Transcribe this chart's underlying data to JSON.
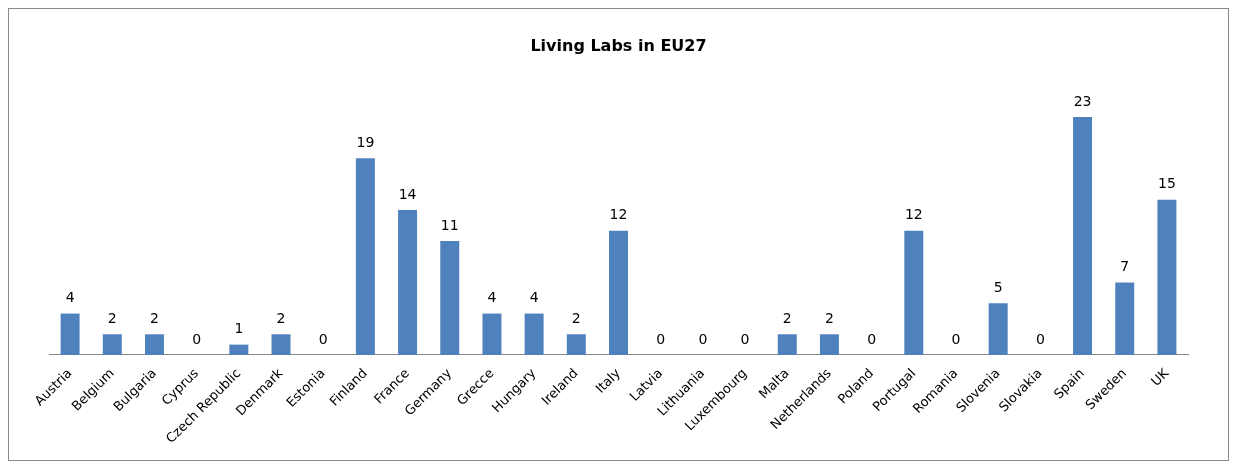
{
  "chart_data": {
    "type": "bar",
    "title": "Living Labs in EU27",
    "categories": [
      "Austria",
      "Belgium",
      "Bulgaria",
      "Cyprus",
      "Czech Republic",
      "Denmark",
      "Estonia",
      "Finland",
      "France",
      "Germany",
      "Grecce",
      "Hungary",
      "Ireland",
      "Italy",
      "Latvia",
      "Lithuania",
      "Luxembourg",
      "Malta",
      "Netherlands",
      "Poland",
      "Portugal",
      "Romania",
      "Slovenia",
      "Slovakia",
      "Spain",
      "Sweden",
      "UK"
    ],
    "values": [
      4,
      2,
      2,
      0,
      1,
      2,
      0,
      19,
      14,
      11,
      4,
      4,
      2,
      12,
      0,
      0,
      0,
      2,
      2,
      0,
      12,
      0,
      5,
      0,
      23,
      7,
      15
    ],
    "color": "#4f81bd",
    "data_labels": true,
    "grid": false,
    "legend": false
  }
}
